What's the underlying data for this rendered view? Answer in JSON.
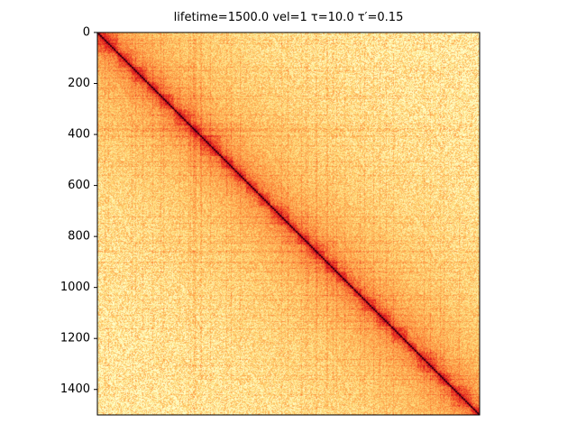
{
  "chart_data": {
    "type": "heatmap",
    "title": "lifetime=1500.0 vel=1 τ=10.0 τ′=0.15",
    "xlabel": "",
    "ylabel": "",
    "matrix_size": 1500,
    "y_axis": {
      "range": [
        0,
        1500
      ],
      "inverted": true,
      "ticks": [
        0,
        200,
        400,
        600,
        800,
        1000,
        1200,
        1400
      ]
    },
    "x_axis": {
      "range": [
        0,
        1500
      ],
      "ticks": []
    },
    "colormap": "YlOrRd",
    "colormap_stops": [
      "#ffffcc",
      "#fed976",
      "#fd8d3c",
      "#e31a1c",
      "#800026",
      "#000000"
    ],
    "pattern": "contact map with strong diagonal, intensity decaying with distance from diagonal",
    "grid": false,
    "colorbar": false
  }
}
